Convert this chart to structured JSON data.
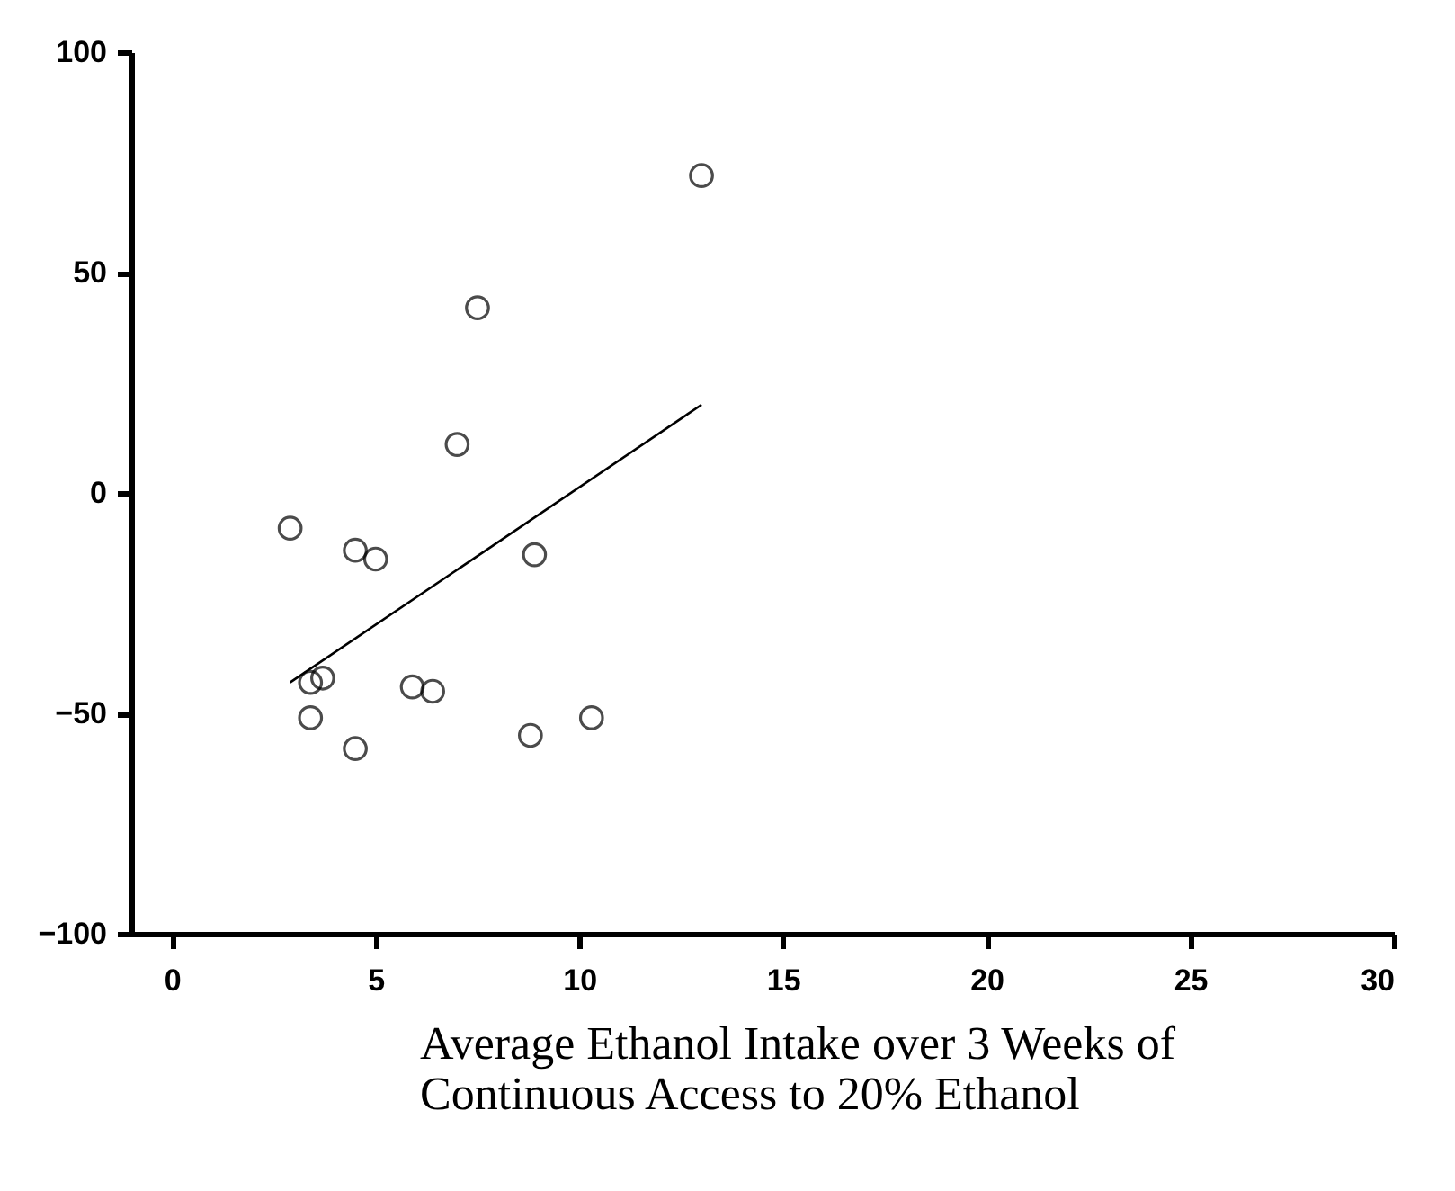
{
  "chart_data": {
    "type": "scatter",
    "xlabel": "Average Ethanol Intake over 3 Weeks of\nContinuous Access to 20% Ethanol",
    "series": [
      {
        "type": "scatter",
        "color": "#000000",
        "marker": "circle",
        "x": [
          13.0,
          7.5,
          7.0,
          2.9,
          4.5,
          5.0,
          8.9,
          3.4,
          3.7,
          3.4,
          4.5,
          5.9,
          6.4,
          8.8,
          10.3
        ],
        "values": [
          72,
          42,
          11,
          -8,
          -13,
          -15,
          -14,
          -43,
          -42,
          -51,
          -58,
          -44,
          -45,
          -55,
          -51
        ]
      },
      {
        "type": "line",
        "color": "#000000",
        "x": [
          2.9,
          13.0
        ],
        "values": [
          -43,
          20
        ]
      }
    ],
    "xlim": [
      -1,
      30
    ],
    "xticks": [
      0,
      5,
      10,
      15,
      20,
      25,
      30
    ],
    "ylim": [
      -100,
      100
    ],
    "yticks": [
      -100,
      -50,
      0,
      50,
      100
    ],
    "grid": false,
    "legend": false
  }
}
